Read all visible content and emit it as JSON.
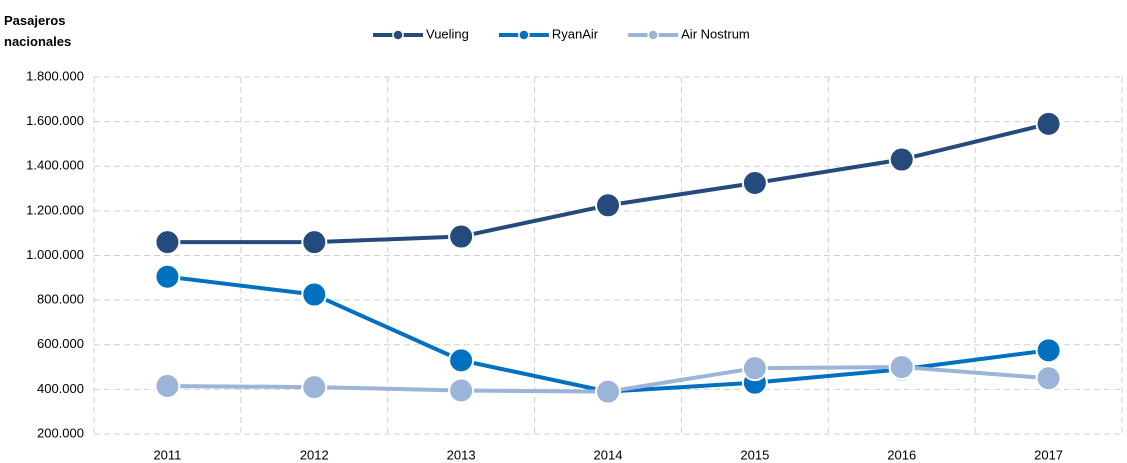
{
  "chart_data": {
    "type": "line",
    "title": "Pasajeros nacionales",
    "categories": [
      "2011",
      "2012",
      "2013",
      "2014",
      "2015",
      "2016",
      "2017"
    ],
    "series": [
      {
        "name": "Vueling",
        "color": "#254a7c",
        "values": [
          1060000,
          1060000,
          1085000,
          1225000,
          1325000,
          1430000,
          1590000
        ]
      },
      {
        "name": "RyanAir",
        "color": "#0070c0",
        "values": [
          905000,
          825000,
          530000,
          390000,
          430000,
          490000,
          575000
        ]
      },
      {
        "name": "Air Nostrum",
        "color": "#9cb4d8",
        "values": [
          415000,
          410000,
          395000,
          390000,
          495000,
          500000,
          450000
        ]
      }
    ],
    "ylim": [
      200000,
      1800000
    ],
    "yticks": [
      {
        "value": 200000,
        "label": "200.000"
      },
      {
        "value": 400000,
        "label": "400.000"
      },
      {
        "value": 600000,
        "label": "600.000"
      },
      {
        "value": 800000,
        "label": "800.000"
      },
      {
        "value": 1000000,
        "label": "1.000.000"
      },
      {
        "value": 1200000,
        "label": "1.200.000"
      },
      {
        "value": 1400000,
        "label": "1.400.000"
      },
      {
        "value": 1600000,
        "label": "1.600.000"
      },
      {
        "value": 1800000,
        "label": "1.800.000"
      }
    ],
    "grid": true,
    "legend": "top"
  }
}
